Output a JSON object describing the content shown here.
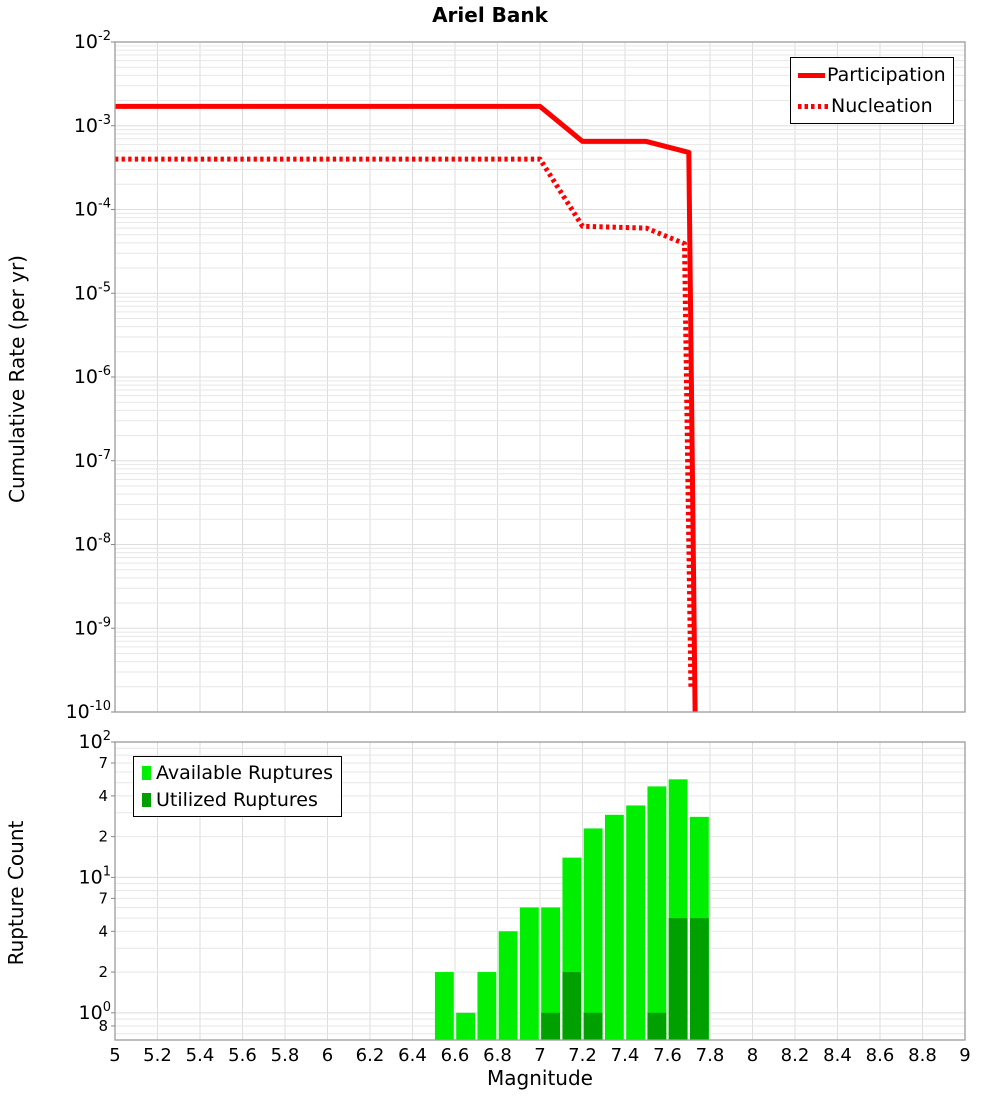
{
  "title": "Ariel Bank",
  "colors": {
    "series_red": "#ff0000",
    "available_green": "#00ee00",
    "utilized_green": "#00a000",
    "grid_minor": "#e7e7e7",
    "grid_major": "#dddddd",
    "axis_border": "#9c9c9c",
    "tick_mark": "#888888",
    "text": "#000000"
  },
  "chart_data": [
    {
      "id": "cumulative-rate-plot",
      "type": "line",
      "title": "Ariel Bank",
      "xlabel": "",
      "ylabel": "Cumulative Rate (per yr)",
      "xscale": "linear",
      "yscale": "log",
      "xlim": [
        5,
        9
      ],
      "ylim": [
        1e-10,
        0.01
      ],
      "grid": true,
      "x_tick_labels_visible": false,
      "y_tick_exponents": [
        -2,
        -3,
        -4,
        -5,
        -6,
        -7,
        -8,
        -9,
        -10
      ],
      "legend_position": "top-right",
      "series": [
        {
          "name": "Participation",
          "color": "#ff0000",
          "line_style": "solid",
          "line_width": 5,
          "points": [
            [
              5.0,
              0.0017
            ],
            [
              7.0,
              0.0017
            ],
            [
              7.2,
              0.00065
            ],
            [
              7.5,
              0.00065
            ],
            [
              7.7,
              0.00048
            ],
            [
              7.73,
              1e-10
            ]
          ]
        },
        {
          "name": "Nucleation",
          "color": "#ff0000",
          "line_style": "dotted",
          "line_width": 5,
          "points": [
            [
              5.0,
              0.0004
            ],
            [
              7.0,
              0.0004
            ],
            [
              7.2,
              6.3e-05
            ],
            [
              7.5,
              6e-05
            ],
            [
              7.68,
              3.9e-05
            ],
            [
              7.71,
              2e-10
            ]
          ]
        }
      ]
    },
    {
      "id": "rupture-count-plot",
      "type": "bar",
      "title": "",
      "xlabel": "Magnitude",
      "ylabel": "Rupture Count",
      "xscale": "linear",
      "yscale": "log",
      "xlim": [
        5,
        9
      ],
      "ylim": [
        0.63,
        100
      ],
      "grid": true,
      "legend_position": "top-left",
      "x_ticks": {
        "values": [
          5,
          5.2,
          5.4,
          5.6,
          5.8,
          6,
          6.2,
          6.4,
          6.6,
          6.8,
          7,
          7.2,
          7.4,
          7.6,
          7.8,
          8,
          8.2,
          8.4,
          8.6,
          8.8,
          9
        ],
        "labels": [
          "5",
          "5.2",
          "5.4",
          "5.6",
          "5.8",
          "6",
          "6.2",
          "6.4",
          "6.6",
          "6.8",
          "7",
          "7.2",
          "7.4",
          "7.6",
          "7.8",
          "8",
          "8.2",
          "8.4",
          "8.6",
          "8.8",
          "9"
        ]
      },
      "y_ticks": [
        {
          "value": 100,
          "label": "10",
          "exp": "2"
        },
        {
          "value": 70,
          "label": "7"
        },
        {
          "value": 40,
          "label": "4"
        },
        {
          "value": 20,
          "label": "2"
        },
        {
          "value": 10,
          "label": "10",
          "exp": "1"
        },
        {
          "value": 7,
          "label": "7"
        },
        {
          "value": 4,
          "label": "4"
        },
        {
          "value": 2,
          "label": "2"
        },
        {
          "value": 1,
          "label": "10",
          "exp": "0"
        },
        {
          "value": 0.8,
          "label": "8"
        }
      ],
      "bin_width": 0.1,
      "bin_starts": [
        6.5,
        6.6,
        6.7,
        6.8,
        6.9,
        7.0,
        7.1,
        7.2,
        7.3,
        7.4,
        7.5,
        7.6,
        7.7
      ],
      "series": [
        {
          "name": "Available Ruptures",
          "color": "#00ee00",
          "values": [
            2,
            1,
            2,
            4,
            6,
            6,
            14,
            23,
            29,
            34,
            47,
            53,
            28
          ]
        },
        {
          "name": "Utilized Ruptures",
          "color": "#00a000",
          "values": [
            0,
            0,
            0,
            0,
            0,
            1,
            2,
            1,
            0,
            0,
            1,
            5,
            5
          ]
        }
      ]
    }
  ]
}
